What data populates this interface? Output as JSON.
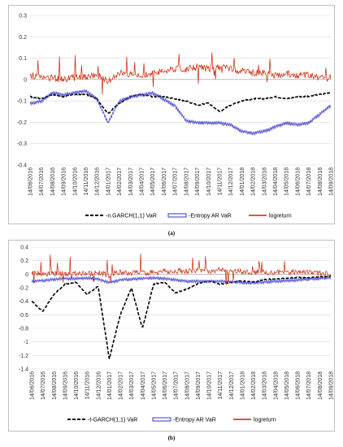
{
  "chart_data": [
    {
      "id": "a",
      "type": "line",
      "caption": "(a)",
      "ylim": [
        -0.4,
        0.3
      ],
      "yticks": [
        0.3,
        0.2,
        0.1,
        0,
        -0.1,
        -0.2,
        -0.3,
        -0.4
      ],
      "ytick_labels": [
        "0.3",
        "0.2",
        "0.1",
        "0",
        "-0.1",
        "-0.2",
        "-0.3",
        "-0.4"
      ],
      "x_categories": [
        "14/06/2016",
        "14/07/2016",
        "14/08/2016",
        "14/09/2016",
        "14/10/2016",
        "14/11/2016",
        "14/12/2016",
        "14/01/2017",
        "14/02/2017",
        "14/03/2017",
        "14/04/2017",
        "14/05/2017",
        "14/06/2017",
        "14/07/2017",
        "14/08/2017",
        "14/09/2017",
        "14/10/2017",
        "14/11/2017",
        "14/12/2017",
        "14/01/2018",
        "14/02/2018",
        "14/03/2018",
        "14/04/2018",
        "14/05/2018",
        "14/06/2018",
        "14/07/2018",
        "14/08/2018",
        "14/09/2018"
      ],
      "grid": "horizontal",
      "legend_position": "bottom",
      "series": [
        {
          "name": "-n.GARCH(1,1) VaR",
          "color": "#000000",
          "style": "dashed",
          "values": [
            -0.08,
            -0.09,
            -0.07,
            -0.08,
            -0.07,
            -0.07,
            -0.09,
            -0.16,
            -0.11,
            -0.08,
            -0.07,
            -0.08,
            -0.08,
            -0.09,
            -0.1,
            -0.12,
            -0.11,
            -0.15,
            -0.12,
            -0.1,
            -0.09,
            -0.09,
            -0.08,
            -0.09,
            -0.08,
            -0.08,
            -0.07,
            -0.06
          ]
        },
        {
          "name": "-Entropy AR VaR",
          "color": "#3333cc",
          "style": "band",
          "values": [
            -0.11,
            -0.1,
            -0.06,
            -0.07,
            -0.06,
            -0.05,
            -0.09,
            -0.2,
            -0.1,
            -0.08,
            -0.07,
            -0.06,
            -0.09,
            -0.12,
            -0.19,
            -0.2,
            -0.2,
            -0.2,
            -0.21,
            -0.24,
            -0.25,
            -0.24,
            -0.22,
            -0.2,
            -0.21,
            -0.2,
            -0.16,
            -0.12
          ]
        },
        {
          "name": "logreturn",
          "color": "#cc2200",
          "style": "spiky",
          "values": [
            0.02,
            0.01,
            0.01,
            0.0,
            0.01,
            0.01,
            0.02,
            -0.01,
            0.03,
            0.02,
            0.02,
            0.03,
            0.04,
            0.05,
            0.05,
            0.06,
            0.05,
            0.06,
            0.05,
            0.04,
            0.03,
            0.03,
            0.02,
            0.03,
            0.02,
            0.02,
            0.01,
            0.01
          ]
        }
      ]
    },
    {
      "id": "b",
      "type": "line",
      "caption": "(b)",
      "ylim": [
        -1.4,
        0.4
      ],
      "yticks": [
        0.4,
        0.2,
        0,
        -0.2,
        -0.4,
        -0.6,
        -0.8,
        -1,
        -1.2,
        -1.4
      ],
      "ytick_labels": [
        "0.4",
        "0.2",
        "0",
        "-0.2",
        "-0.4",
        "-0.6",
        "-0.8",
        "-1",
        "-1.2",
        "-1.4"
      ],
      "x_categories": [
        "14/06/2016",
        "14/07/2016",
        "14/08/2016",
        "14/09/2016",
        "14/10/2016",
        "14/11/2016",
        "14/12/2016",
        "14/01/2017",
        "14/02/2017",
        "14/03/2017",
        "14/04/2017",
        "14/05/2017",
        "14/06/2017",
        "14/07/2017",
        "14/08/2017",
        "14/09/2017",
        "14/10/2017",
        "14/11/2017",
        "14/12/2017",
        "14/01/2018",
        "14/02/2018",
        "14/03/2018",
        "14/04/2018",
        "14/05/2018",
        "14/06/2018",
        "14/07/2018",
        "14/08/2018",
        "14/09/2018"
      ],
      "grid": "horizontal",
      "legend_position": "bottom",
      "series": [
        {
          "name": "-t-GARCH(1,1) VaR",
          "color": "#000000",
          "style": "dashed",
          "values": [
            -0.4,
            -0.55,
            -0.3,
            -0.15,
            -0.12,
            -0.3,
            -0.18,
            -1.25,
            -0.6,
            -0.2,
            -0.8,
            -0.15,
            -0.12,
            -0.28,
            -0.22,
            -0.14,
            -0.1,
            -0.15,
            -0.12,
            -0.1,
            -0.12,
            -0.08,
            -0.07,
            -0.06,
            -0.05,
            -0.05,
            -0.04,
            -0.03
          ]
        },
        {
          "name": "-Entropy AR VaR",
          "color": "#3333cc",
          "style": "band",
          "values": [
            -0.1,
            -0.09,
            -0.07,
            -0.06,
            -0.06,
            -0.05,
            -0.07,
            -0.12,
            -0.08,
            -0.07,
            -0.06,
            -0.05,
            -0.06,
            -0.08,
            -0.1,
            -0.1,
            -0.1,
            -0.1,
            -0.11,
            -0.12,
            -0.12,
            -0.11,
            -0.1,
            -0.09,
            -0.08,
            -0.07,
            -0.06,
            -0.05
          ]
        },
        {
          "name": "logreturn",
          "color": "#cc2200",
          "style": "spiky",
          "values": [
            0.02,
            0.01,
            0.01,
            0.0,
            0.01,
            0.01,
            0.02,
            -0.01,
            0.03,
            0.02,
            0.02,
            0.03,
            0.04,
            0.05,
            0.05,
            0.06,
            0.05,
            0.06,
            0.05,
            0.04,
            0.03,
            0.03,
            0.02,
            0.03,
            0.02,
            0.02,
            0.01,
            0.01
          ]
        }
      ]
    }
  ]
}
